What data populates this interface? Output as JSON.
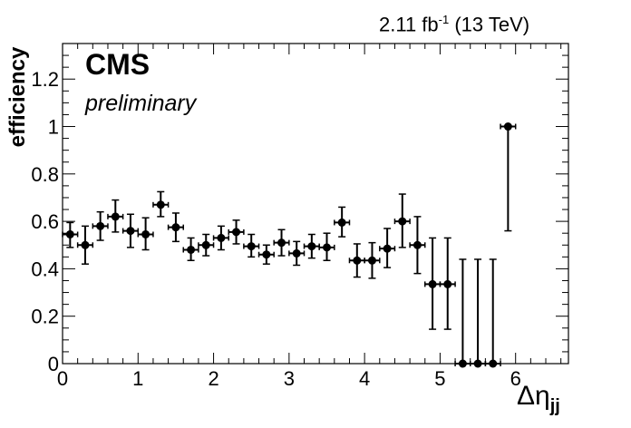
{
  "header": {
    "lumi_value": "2.11 fb",
    "lumi_exp": "-1",
    "lumi_energy": "(13 TeV)",
    "experiment": "CMS",
    "status": "preliminary"
  },
  "chart_data": {
    "type": "scatter",
    "xlabel_main": "Δη",
    "xlabel_sub": "jj",
    "ylabel": "efficiency",
    "xlim": [
      0,
      6.7
    ],
    "ylim": [
      0,
      1.35
    ],
    "x_ticks": [
      0,
      1,
      2,
      3,
      4,
      5,
      6
    ],
    "y_ticks": [
      0,
      0.2,
      0.4,
      0.6,
      0.8,
      1,
      1.2
    ],
    "y_tick_labels": [
      "0",
      "0.2",
      "0.4",
      "0.6",
      "0.8",
      "1",
      "1.2"
    ],
    "x_tick_labels": [
      "0",
      "1",
      "2",
      "3",
      "4",
      "5",
      "6"
    ],
    "bin_half_width": 0.1,
    "grid": false,
    "marker_color": "#000000",
    "points": [
      {
        "x": 0.1,
        "y": 0.545,
        "err_low": 0.055,
        "err_high": 0.05
      },
      {
        "x": 0.3,
        "y": 0.5,
        "err_low": 0.08,
        "err_high": 0.08
      },
      {
        "x": 0.5,
        "y": 0.58,
        "err_low": 0.06,
        "err_high": 0.06
      },
      {
        "x": 0.7,
        "y": 0.62,
        "err_low": 0.065,
        "err_high": 0.07
      },
      {
        "x": 0.9,
        "y": 0.56,
        "err_low": 0.07,
        "err_high": 0.07
      },
      {
        "x": 1.1,
        "y": 0.545,
        "err_low": 0.065,
        "err_high": 0.07
      },
      {
        "x": 1.3,
        "y": 0.67,
        "err_low": 0.05,
        "err_high": 0.055
      },
      {
        "x": 1.5,
        "y": 0.575,
        "err_low": 0.06,
        "err_high": 0.06
      },
      {
        "x": 1.7,
        "y": 0.48,
        "err_low": 0.045,
        "err_high": 0.05
      },
      {
        "x": 1.9,
        "y": 0.5,
        "err_low": 0.045,
        "err_high": 0.045
      },
      {
        "x": 2.1,
        "y": 0.53,
        "err_low": 0.05,
        "err_high": 0.05
      },
      {
        "x": 2.3,
        "y": 0.555,
        "err_low": 0.05,
        "err_high": 0.05
      },
      {
        "x": 2.5,
        "y": 0.495,
        "err_low": 0.045,
        "err_high": 0.05
      },
      {
        "x": 2.7,
        "y": 0.46,
        "err_low": 0.04,
        "err_high": 0.04
      },
      {
        "x": 2.9,
        "y": 0.51,
        "err_low": 0.055,
        "err_high": 0.055
      },
      {
        "x": 3.1,
        "y": 0.465,
        "err_low": 0.05,
        "err_high": 0.05
      },
      {
        "x": 3.3,
        "y": 0.495,
        "err_low": 0.05,
        "err_high": 0.05
      },
      {
        "x": 3.5,
        "y": 0.49,
        "err_low": 0.055,
        "err_high": 0.06
      },
      {
        "x": 3.7,
        "y": 0.595,
        "err_low": 0.06,
        "err_high": 0.065
      },
      {
        "x": 3.9,
        "y": 0.435,
        "err_low": 0.07,
        "err_high": 0.07
      },
      {
        "x": 4.1,
        "y": 0.435,
        "err_low": 0.075,
        "err_high": 0.075
      },
      {
        "x": 4.3,
        "y": 0.485,
        "err_low": 0.08,
        "err_high": 0.085
      },
      {
        "x": 4.5,
        "y": 0.6,
        "err_low": 0.11,
        "err_high": 0.115
      },
      {
        "x": 4.7,
        "y": 0.5,
        "err_low": 0.12,
        "err_high": 0.12
      },
      {
        "x": 4.9,
        "y": 0.335,
        "err_low": 0.19,
        "err_high": 0.195
      },
      {
        "x": 5.1,
        "y": 0.335,
        "err_low": 0.19,
        "err_high": 0.195
      },
      {
        "x": 5.3,
        "y": 0.0,
        "err_low": 0.0,
        "err_high": 0.44
      },
      {
        "x": 5.5,
        "y": 0.0,
        "err_low": 0.0,
        "err_high": 0.44
      },
      {
        "x": 5.7,
        "y": 0.0,
        "err_low": 0.0,
        "err_high": 0.44
      },
      {
        "x": 5.9,
        "y": 1.0,
        "err_low": 0.44,
        "err_high": 0.0
      }
    ]
  }
}
